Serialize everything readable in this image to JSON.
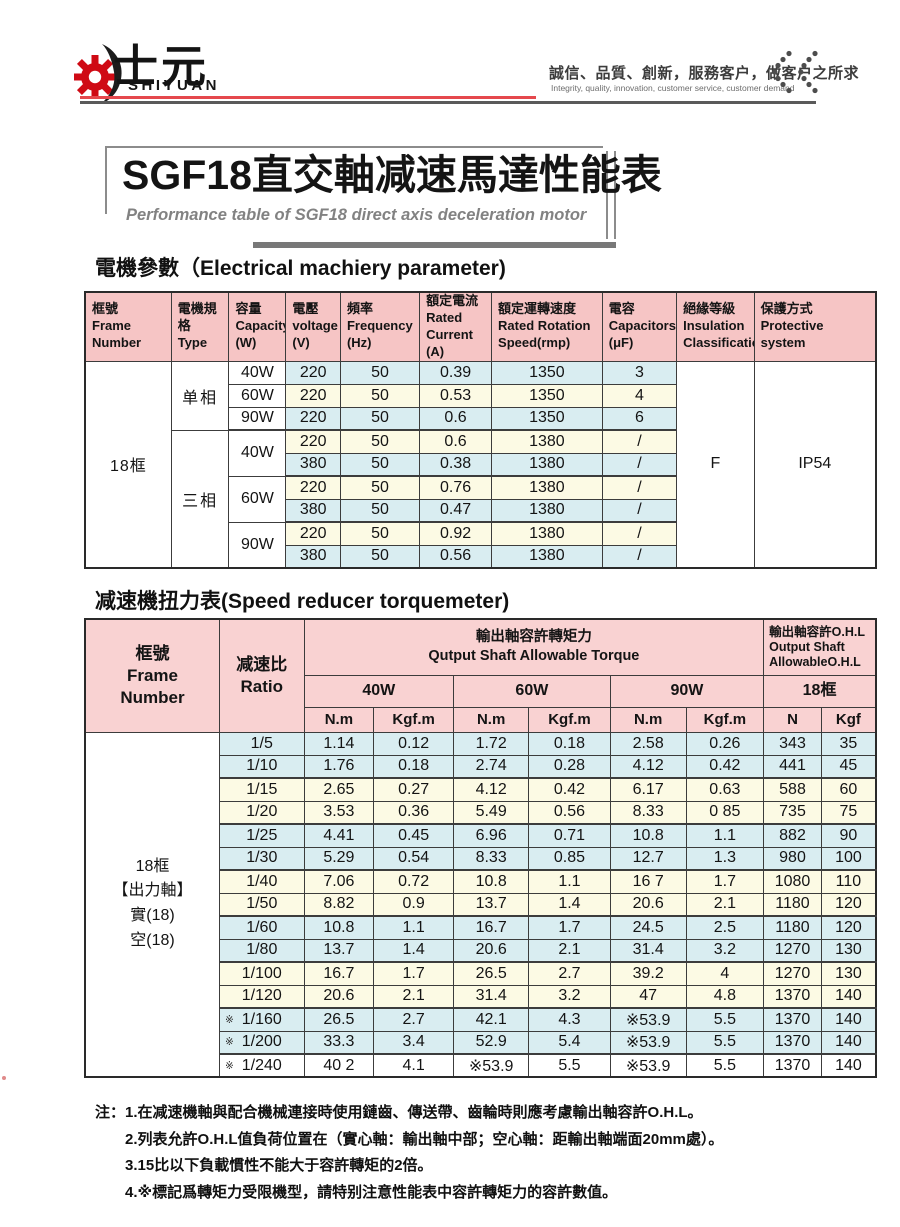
{
  "colors": {
    "header_pink_electrical": "#f6c5c5",
    "header_pink_torque": "#f9d2d2",
    "row_blue": "#d9edf1",
    "row_cream": "#fcfae4",
    "accent_red": "#e5484d",
    "line_gray": "#5a5a5a",
    "table_border": "#3c3c3c"
  },
  "header": {
    "brand_cn": "士元",
    "brand_en": "SHIYUAN",
    "slogan_cn": "誠信、品質、創新，服務客户，做客户之所求",
    "slogan_en": "Integrity, quality, innovation, customer service, customer demand",
    "gear_icon": "gear-icon",
    "dots_icon": "chevron-dots-icon"
  },
  "title_block": {
    "title": "SGF18直交軸减速馬達性能表",
    "subtitle": "Performance table of SGF18 direct axis deceleration motor"
  },
  "electrical": {
    "section_title": "電機參數（Electrical machiery parameter)",
    "col_pct": [
      10.9,
      7.3,
      7.2,
      6.9,
      10.0,
      9.1,
      14.0,
      9.4,
      9.8,
      15.4
    ],
    "headers": [
      "框號\nFrame\nNumber",
      "電機規格\nType",
      "容量\nCapacity\n(W)",
      "電壓\nvoltage\n(V)",
      "頻率\nFrequency\n(Hz)",
      "額定電流\nRated\nCurrent\n(A)",
      "額定運轉速度\nRated Rotation\nSpeed(rmp)",
      "電容\nCapacitors\n(μF)",
      "絕緣等級\nInsulation\nClassification",
      "保護方式\nProtective\nsystem"
    ],
    "rows": [
      [
        {
          "t": "18框",
          "rs": 9,
          "c": "w frame"
        },
        {
          "t": "单相",
          "rs": 3,
          "c": "w type"
        },
        {
          "t": "40W",
          "c": "w"
        },
        {
          "t": "220",
          "c": "b"
        },
        {
          "t": "50",
          "c": "b"
        },
        {
          "t": "0.39",
          "c": "b"
        },
        {
          "t": "1350",
          "c": "b"
        },
        {
          "t": "3",
          "c": "b"
        },
        {
          "t": "F",
          "rs": 9,
          "c": "w"
        },
        {
          "t": "IP54",
          "rs": 9,
          "c": "w"
        }
      ],
      [
        {
          "t": "60W",
          "c": "w"
        },
        {
          "t": "220",
          "c": "y"
        },
        {
          "t": "50",
          "c": "y"
        },
        {
          "t": "0.53",
          "c": "y"
        },
        {
          "t": "1350",
          "c": "y"
        },
        {
          "t": "4",
          "c": "y"
        }
      ],
      [
        {
          "t": "90W",
          "c": "w"
        },
        {
          "t": "220",
          "c": "b"
        },
        {
          "t": "50",
          "c": "b"
        },
        {
          "t": "0.6",
          "c": "b"
        },
        {
          "t": "1350",
          "c": "b"
        },
        {
          "t": "6",
          "c": "b"
        }
      ],
      [
        {
          "t": "三相",
          "rs": 6,
          "c": "w type"
        },
        {
          "t": "40W",
          "rs": 2,
          "c": "w"
        },
        {
          "t": "220",
          "c": "y"
        },
        {
          "t": "50",
          "c": "y"
        },
        {
          "t": "0.6",
          "c": "y"
        },
        {
          "t": "1380",
          "c": "y"
        },
        {
          "t": "/",
          "c": "y"
        }
      ],
      [
        {
          "t": "380",
          "c": "b"
        },
        {
          "t": "50",
          "c": "b"
        },
        {
          "t": "0.38",
          "c": "b"
        },
        {
          "t": "1380",
          "c": "b"
        },
        {
          "t": "/",
          "c": "b"
        }
      ],
      [
        {
          "t": "60W",
          "rs": 2,
          "c": "w"
        },
        {
          "t": "220",
          "c": "y"
        },
        {
          "t": "50",
          "c": "y"
        },
        {
          "t": "0.76",
          "c": "y"
        },
        {
          "t": "1380",
          "c": "y"
        },
        {
          "t": "/",
          "c": "y"
        }
      ],
      [
        {
          "t": "380",
          "c": "b"
        },
        {
          "t": "50",
          "c": "b"
        },
        {
          "t": "0.47",
          "c": "b"
        },
        {
          "t": "1380",
          "c": "b"
        },
        {
          "t": "/",
          "c": "b"
        }
      ],
      [
        {
          "t": "90W",
          "rs": 2,
          "c": "w"
        },
        {
          "t": "220",
          "c": "y"
        },
        {
          "t": "50",
          "c": "y"
        },
        {
          "t": "0.92",
          "c": "y"
        },
        {
          "t": "1380",
          "c": "y"
        },
        {
          "t": "/",
          "c": "y"
        }
      ],
      [
        {
          "t": "380",
          "c": "b"
        },
        {
          "t": "50",
          "c": "b"
        },
        {
          "t": "0.56",
          "c": "b"
        },
        {
          "t": "1380",
          "c": "b"
        },
        {
          "t": "/",
          "c": "b"
        }
      ]
    ]
  },
  "torque": {
    "section_title": "减速機扭力表(Speed reducer torquemeter)",
    "col_pct": [
      17.0,
      10.7,
      8.8,
      10.1,
      9.5,
      10.3,
      9.6,
      9.8,
      7.3,
      6.9
    ],
    "h_frame": "框號\nFrame\nNumber",
    "h_ratio": "减速比\nRatio",
    "h_torque_cn": "輸出軸容許轉矩力",
    "h_torque_en": "Qutput Shaft Allowable Torque",
    "h_ohl": "輸出軸容許O.H.L\nOutput Shaft\nAllowableO.H.L",
    "powers": [
      "40W",
      "60W",
      "90W",
      "18框"
    ],
    "units": [
      "N.m",
      "Kgf.m",
      "N.m",
      "Kgf.m",
      "N.m",
      "Kgf.m",
      "N",
      "Kgf"
    ],
    "frame_cell": "18框\n【出力軸】\n實(18)\n空(18)",
    "rows": [
      {
        "mark": "",
        "ratio": "1/5",
        "tone": "b",
        "vals": [
          "1.14",
          "0.12",
          "1.72",
          "0.18",
          "2.58",
          "0.26",
          "343",
          "35"
        ]
      },
      {
        "mark": "",
        "ratio": "1/10",
        "tone": "b",
        "vals": [
          "1.76",
          "0.18",
          "2.74",
          "0.28",
          "4.12",
          "0.42",
          "441",
          "45"
        ]
      },
      {
        "mark": "",
        "ratio": "1/15",
        "tone": "y",
        "vals": [
          "2.65",
          "0.27",
          "4.12",
          "0.42",
          "6.17",
          "0.63",
          "588",
          "60"
        ]
      },
      {
        "mark": "",
        "ratio": "1/20",
        "tone": "y",
        "vals": [
          "3.53",
          "0.36",
          "5.49",
          "0.56",
          "8.33",
          "0 85",
          "735",
          "75"
        ]
      },
      {
        "mark": "",
        "ratio": "1/25",
        "tone": "b",
        "vals": [
          "4.41",
          "0.45",
          "6.96",
          "0.71",
          "10.8",
          "1.1",
          "882",
          "90"
        ]
      },
      {
        "mark": "",
        "ratio": "1/30",
        "tone": "b",
        "vals": [
          "5.29",
          "0.54",
          "8.33",
          "0.85",
          "12.7",
          "1.3",
          "980",
          "100"
        ]
      },
      {
        "mark": "",
        "ratio": "1/40",
        "tone": "y",
        "vals": [
          "7.06",
          "0.72",
          "10.8",
          "1.1",
          "16 7",
          "1.7",
          "1080",
          "110"
        ]
      },
      {
        "mark": "",
        "ratio": "1/50",
        "tone": "y",
        "vals": [
          "8.82",
          "0.9",
          "13.7",
          "1.4",
          "20.6",
          "2.1",
          "1180",
          "120"
        ]
      },
      {
        "mark": "",
        "ratio": "1/60",
        "tone": "b",
        "vals": [
          "10.8",
          "1.1",
          "16.7",
          "1.7",
          "24.5",
          "2.5",
          "1180",
          "120"
        ]
      },
      {
        "mark": "",
        "ratio": "1/80",
        "tone": "b",
        "vals": [
          "13.7",
          "1.4",
          "20.6",
          "2.1",
          "31.4",
          "3.2",
          "1270",
          "130"
        ]
      },
      {
        "mark": "",
        "ratio": "1/100",
        "tone": "y",
        "vals": [
          "16.7",
          "1.7",
          "26.5",
          "2.7",
          "39.2",
          "4",
          "1270",
          "130"
        ]
      },
      {
        "mark": "",
        "ratio": "1/120",
        "tone": "y",
        "vals": [
          "20.6",
          "2.1",
          "31.4",
          "3.2",
          "47",
          "4.8",
          "1370",
          "140"
        ]
      },
      {
        "mark": "※",
        "ratio": "1/160",
        "tone": "b",
        "vals": [
          "26.5",
          "2.7",
          "42.1",
          "4.3",
          "※53.9",
          "5.5",
          "1370",
          "140"
        ]
      },
      {
        "mark": "※",
        "ratio": "1/200",
        "tone": "b",
        "vals": [
          "33.3",
          "3.4",
          "52.9",
          "5.4",
          "※53.9",
          "5.5",
          "1370",
          "140"
        ]
      },
      {
        "mark": "※",
        "ratio": "1/240",
        "tone": "w",
        "vals": [
          "40 2",
          "4.1",
          "※53.9",
          "5.5",
          "※53.9",
          "5.5",
          "1370",
          "140"
        ]
      }
    ]
  },
  "notes": {
    "label": "注：",
    "items": [
      "1.在减速機軸與配合機械連接時使用鏈齒、傳送帶、齒輪時則應考慮輸出軸容許O.H.L。",
      "2.列表允許O.H.L值負荷位置在（實心軸：輸出軸中部；空心軸：距輸出軸端面20mm處）。",
      "3.15比以下負載慣性不能大于容許轉矩的2倍。",
      "4.※標記爲轉矩力受限機型，請特别注意性能表中容許轉矩力的容許數值。"
    ]
  }
}
